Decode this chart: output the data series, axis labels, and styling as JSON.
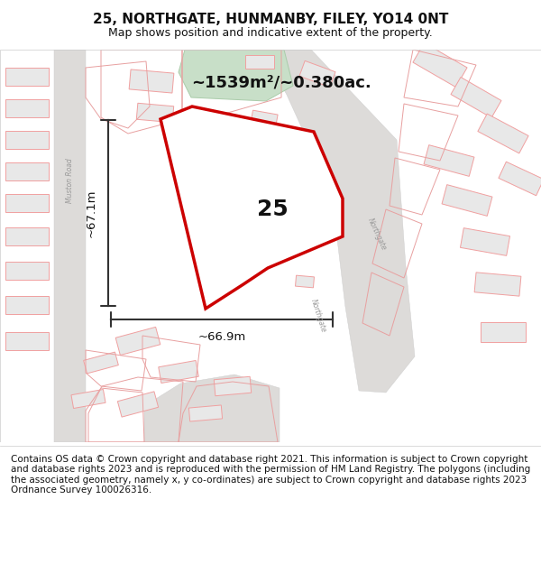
{
  "title": "25, NORTHGATE, HUNMANBY, FILEY, YO14 0NT",
  "subtitle": "Map shows position and indicative extent of the property.",
  "footer": "Contains OS data © Crown copyright and database right 2021. This information is subject to Crown copyright and database rights 2023 and is reproduced with the permission of HM Land Registry. The polygons (including the associated geometry, namely x, y co-ordinates) are subject to Crown copyright and database rights 2023 Ordnance Survey 100026316.",
  "area_label": "~1539m²/~0.380ac.",
  "width_label": "~66.9m",
  "height_label": "~67.1m",
  "property_number": "25",
  "bg_color": "#ffffff",
  "building_fill_color": "#e8e8e8",
  "building_outline_color": "#f0a0a0",
  "green_fill": "#c8dfc8",
  "green_edge": "#aaccaa",
  "highlight_polygon_color": "#cc0000",
  "lot_outline_color": "#e8a0a0",
  "road_fill": "#dddbd9",
  "dim_line_color": "#333333",
  "title_fontsize": 11,
  "subtitle_fontsize": 9,
  "footer_fontsize": 7.5,
  "label_fontsize": 13,
  "number_fontsize": 18
}
